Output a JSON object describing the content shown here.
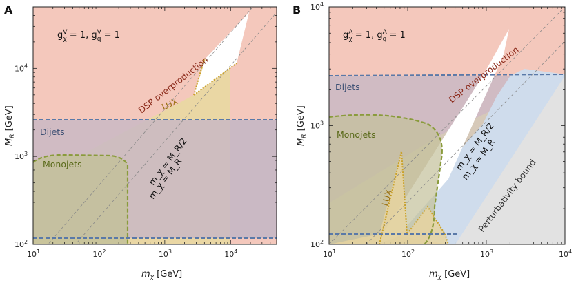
{
  "colors": {
    "dsp": "#f4c8bc",
    "dijets": "#c9b9c4",
    "dijets_line": "#5a79a8",
    "monojets": "#c9c7a2",
    "monojets_line": "#8a9b3c",
    "lux": "#e6d4a0",
    "lux_line": "#c9a12a",
    "perturb": "#e2e2e2",
    "axial_blue": "#cfdcec",
    "dsp_text": "#8b2a1a",
    "dijets_text": "#3c4f73",
    "monojets_text": "#5a6a1a",
    "lux_text": "#9a7010"
  },
  "chart_data": [
    {
      "type": "area",
      "panel": "A",
      "coupling": {
        "gx_label": "g",
        "gx_sup": "V",
        "gx_sub": "χ",
        "gx_val": " = 1,  ",
        "gq_label": "g",
        "gq_sup": "V",
        "gq_sub": "q",
        "gq_val": " = 1"
      },
      "xlabel": "m_χ [GeV]",
      "ylabel": "M_R [GeV]",
      "xscale": "log",
      "yscale": "log",
      "xlim": [
        10,
        50000
      ],
      "ylim": [
        100,
        50000
      ],
      "xticks": [
        {
          "base": "10",
          "exp": "1",
          "v": 10
        },
        {
          "base": "10",
          "exp": "2",
          "v": 100
        },
        {
          "base": "10",
          "exp": "3",
          "v": 1000
        },
        {
          "base": "10",
          "exp": "4",
          "v": 10000
        }
      ],
      "yticks": [
        {
          "base": "10",
          "exp": "2",
          "v": 100
        },
        {
          "base": "10",
          "exp": "3",
          "v": 1000
        },
        {
          "base": "10",
          "exp": "4",
          "v": 10000
        }
      ],
      "regions": {
        "dsp": [
          [
            10,
            100
          ],
          [
            50000,
            100
          ],
          [
            50000,
            50000
          ],
          [
            10,
            50000
          ],
          [
            10,
            580
          ],
          [
            3800,
            12000
          ],
          [
            3000,
            5500
          ],
          [
            40000,
            44000
          ],
          [
            12000,
            12500
          ],
          [
            9700,
            10000
          ]
        ],
        "lux": [
          [
            20,
            100
          ],
          [
            9700,
            100
          ],
          [
            9700,
            10000
          ],
          [
            12000,
            12500
          ],
          [
            9700,
            10000
          ],
          [
            4100,
            7500
          ],
          [
            3000,
            5800
          ]
        ],
        "dijets": {
          "ymin": 130,
          "ymax": 2900,
          "xmin": 10,
          "xmax": 50000
        },
        "monojets": [
          [
            10,
            100
          ],
          [
            270,
            100
          ],
          [
            270,
            900
          ],
          [
            250,
            1200
          ],
          [
            180,
            1350
          ],
          [
            30,
            1350
          ],
          [
            10,
            1100
          ]
        ]
      },
      "lines": {
        "half": "m_χ = M_R/2",
        "equal": "m_χ = M_R"
      },
      "annotations": {
        "dsp": "DSP overproduction",
        "lux": "LUX",
        "dijets": "Dijets",
        "monojets": "Monojets"
      }
    },
    {
      "type": "area",
      "panel": "B",
      "coupling": {
        "gx_label": "g",
        "gx_sup": "A",
        "gx_sub": "χ",
        "gx_val": " = 1,  ",
        "gq_label": "g",
        "gq_sup": "A",
        "gq_sub": "q",
        "gq_val": " = 1"
      },
      "xlabel": "m_χ [GeV]",
      "ylabel": "M_R [GeV]",
      "xscale": "log",
      "yscale": "log",
      "xlim": [
        10,
        10000
      ],
      "ylim": [
        100,
        10000
      ],
      "xticks": [
        {
          "base": "10",
          "exp": "1",
          "v": 10
        },
        {
          "base": "10",
          "exp": "2",
          "v": 100
        },
        {
          "base": "10",
          "exp": "3",
          "v": 1000
        },
        {
          "base": "10",
          "exp": "4",
          "v": 10000
        }
      ],
      "yticks": [
        {
          "base": "10",
          "exp": "2",
          "v": 100
        },
        {
          "base": "10",
          "exp": "3",
          "v": 1000
        },
        {
          "base": "10",
          "exp": "4",
          "v": 10000
        }
      ],
      "lines": {
        "half": "m_χ = M_R/2",
        "equal": "m_χ = M_R"
      },
      "annotations": {
        "dsp": "DSP overproduction",
        "lux": "LUX",
        "dijets": "Dijets",
        "monojets": "Monojets",
        "perturb": "Perturbativity bound"
      }
    }
  ],
  "panel_labels": [
    "A",
    "B"
  ]
}
